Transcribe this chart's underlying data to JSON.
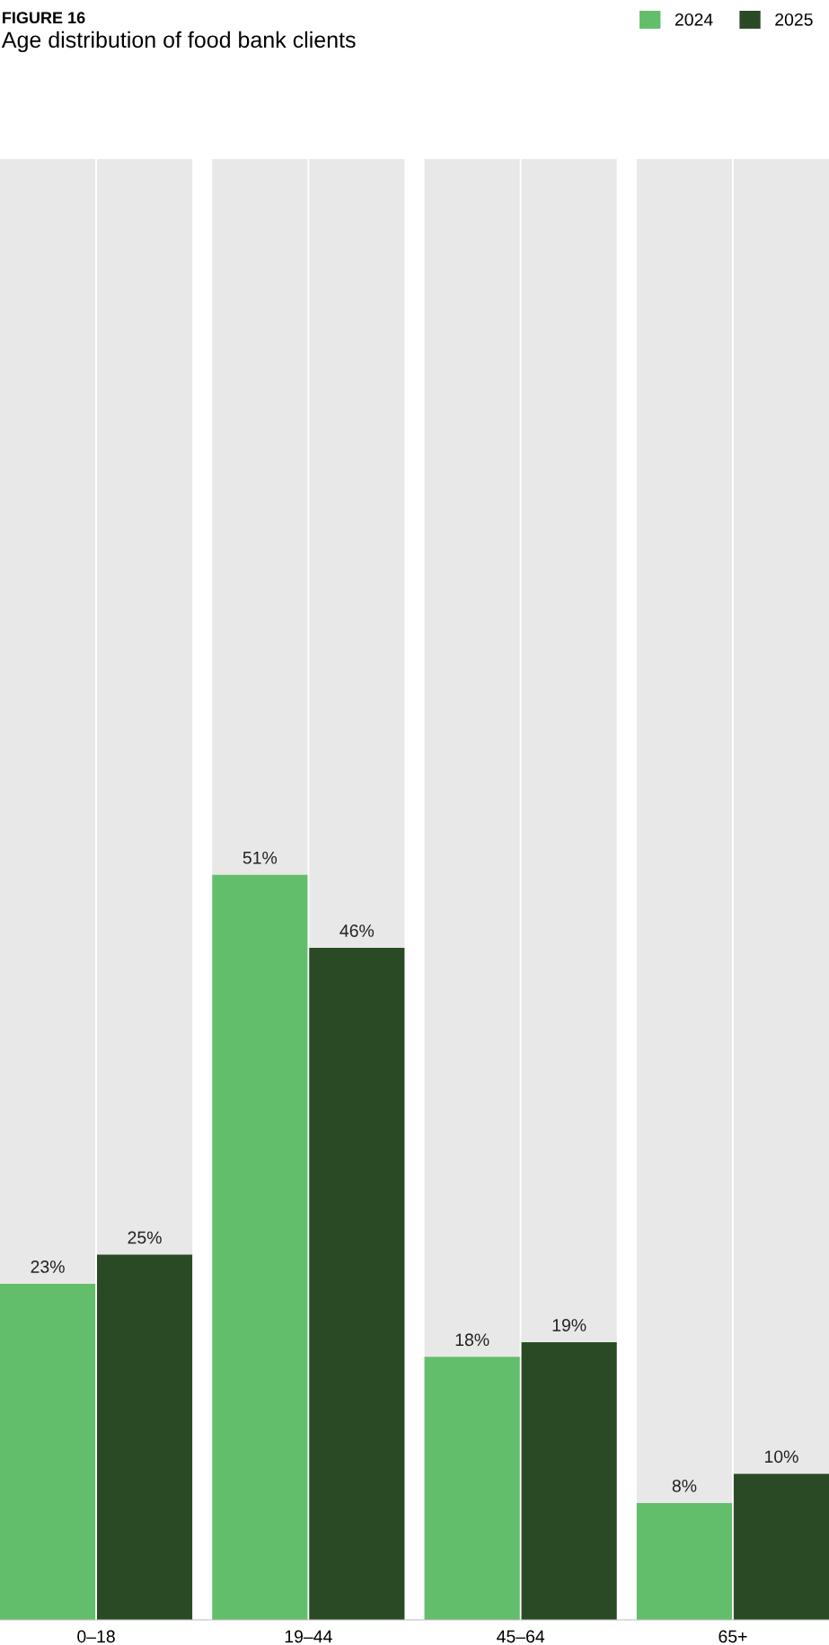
{
  "chart_data": {
    "type": "bar",
    "title": "FIGURE 16",
    "subtitle": "Age distribution of food bank clients",
    "categories": [
      "0–18",
      "19–44",
      "45–64",
      "65+"
    ],
    "series": [
      {
        "name": "2024",
        "color": "#62be6a",
        "values": [
          23,
          51,
          18,
          8
        ],
        "value_labels": [
          "23%",
          "51%",
          "18%",
          "8%"
        ]
      },
      {
        "name": "2025",
        "color": "#2a4a25",
        "values": [
          25,
          46,
          19,
          10
        ],
        "value_labels": [
          "25%",
          "46%",
          "19%",
          "10%"
        ]
      }
    ],
    "ylim": [
      0,
      100
    ],
    "tick_labels": "x",
    "legend": "top right",
    "grid": false
  }
}
